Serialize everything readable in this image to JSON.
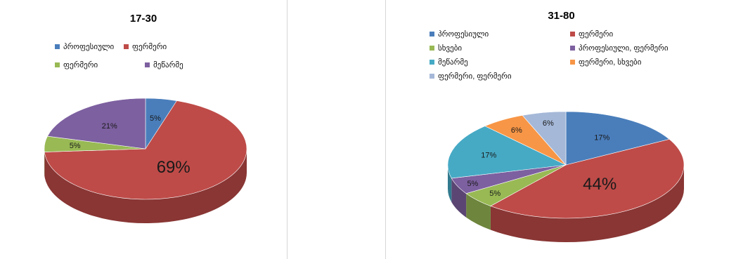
{
  "chart_data": [
    {
      "type": "pie",
      "title": "17-30",
      "legend_placement": "top",
      "slices": [
        {
          "name": "პროფესიული",
          "value": 5,
          "label": "5%",
          "color": "#4a7ebb"
        },
        {
          "name": "ფერმერი",
          "value": 69,
          "label": "69%",
          "color": "#be4b48"
        },
        {
          "name": "ფერმერი",
          "value": 5,
          "label": "5%",
          "color": "#98b954"
        },
        {
          "name": "მეწარმე",
          "value": 21,
          "label": "21%",
          "color": "#7d60a0"
        }
      ]
    },
    {
      "type": "pie",
      "title": "31-80",
      "legend_placement": "top",
      "slices": [
        {
          "name": "პროფესიული",
          "value": 17,
          "label": "17%",
          "color": "#4a7ebb"
        },
        {
          "name": "ფერმერი",
          "value": 44,
          "label": "44%",
          "color": "#be4b48"
        },
        {
          "name": "სხვები",
          "value": 5,
          "label": "5%",
          "color": "#98b954"
        },
        {
          "name": "პროფესიული, ფერმერი",
          "value": 5,
          "label": "5%",
          "color": "#7d60a0"
        },
        {
          "name": "მეწარმე",
          "value": 17,
          "label": "17%",
          "color": "#46aac5"
        },
        {
          "name": "ფერმერი, სხვები",
          "value": 6,
          "label": "6%",
          "color": "#f79646"
        },
        {
          "name": "ფერმერი, ფერმერი",
          "value": 6,
          "label": "6%",
          "color": "#a5b8d8"
        }
      ]
    }
  ]
}
